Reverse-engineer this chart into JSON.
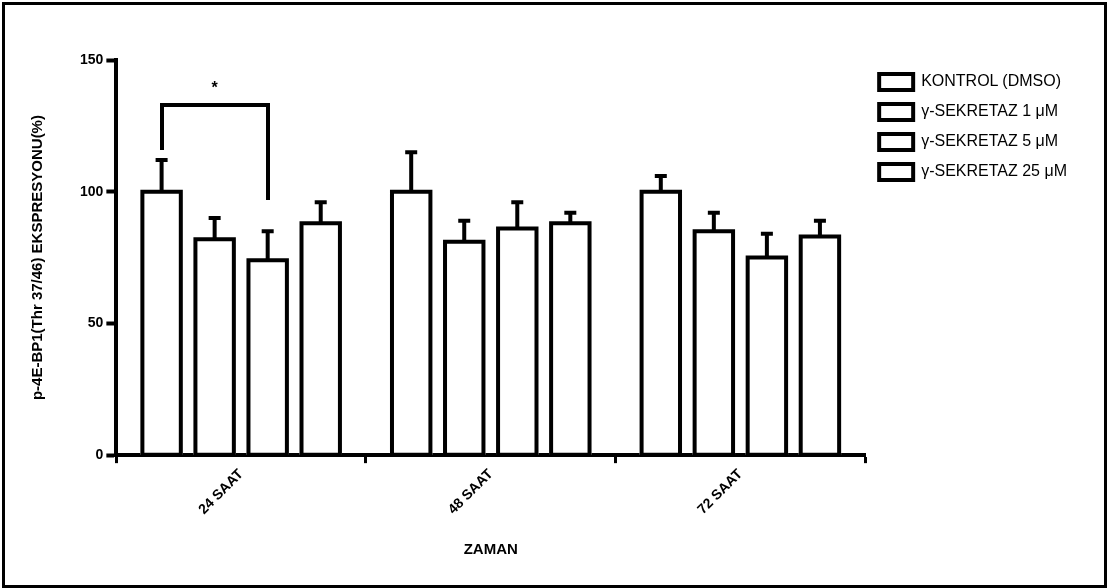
{
  "chart_data": {
    "type": "bar",
    "xlabel": "ZAMAN",
    "ylabel": "p-4E-BP1(Thr 37/46) EKSPRESYONU(%)",
    "categories": [
      "24 SAAT",
      "48 SAAT",
      "72 SAAT"
    ],
    "series": [
      {
        "name": "KONTROL (DMSO)",
        "color": "#000000",
        "values": [
          100,
          100,
          100
        ],
        "errors": [
          [
            100,
            112
          ],
          [
            100,
            115
          ],
          [
            100,
            106
          ]
        ]
      },
      {
        "name": "γ-SEKRETAZ 1 μM",
        "color": "#000000",
        "values": [
          82,
          81,
          85
        ],
        "errors": [
          [
            82,
            90
          ],
          [
            81,
            89
          ],
          [
            85,
            92
          ]
        ]
      },
      {
        "name": "γ-SEKRETAZ 5 μM",
        "color": "#000000",
        "values": [
          74,
          86,
          75
        ],
        "errors": [
          [
            74,
            85
          ],
          [
            86,
            96
          ],
          [
            75,
            84
          ]
        ]
      },
      {
        "name": "γ-SEKRETAZ 25 μM",
        "color": "#000000",
        "values": [
          88,
          88,
          83
        ],
        "errors": [
          [
            88,
            96
          ],
          [
            88,
            92
          ],
          [
            83,
            89
          ]
        ]
      }
    ],
    "ylim": [
      0,
      150
    ],
    "yticks": [
      0,
      50,
      100,
      150
    ],
    "grid": false,
    "legend": "right",
    "annotations": [
      "*"
    ]
  }
}
